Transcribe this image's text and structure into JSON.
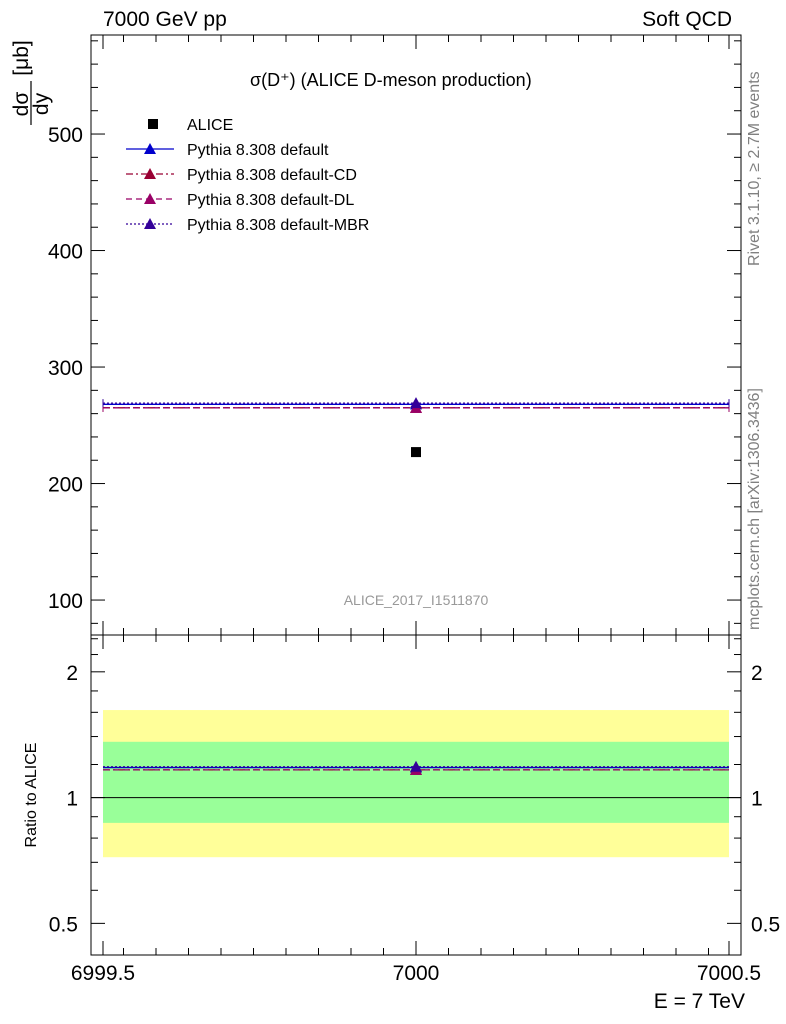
{
  "header": {
    "left": "7000 GeV pp",
    "right": "Soft QCD"
  },
  "side_labels": {
    "rivet": "Rivet 3.1.10, ≥ 2.7M events",
    "mcplots": "mcplots.cern.ch [arXiv:1306.3436]"
  },
  "watermark": "ALICE_2017_I1511870",
  "chart_data": [
    {
      "type": "scatter",
      "panel": "main",
      "title": "σ(D⁺) (ALICE D-meson production)",
      "ylabel": "dσ/dy [μb]",
      "ylabel_num": "dσ",
      "ylabel_den": "dy",
      "ylabel_unit": "[μb]",
      "xlim": [
        6999.5,
        7000.5
      ],
      "ylim": [
        70,
        585
      ],
      "yticks": [
        100,
        200,
        300,
        400,
        500
      ],
      "legend_position": "top-left",
      "series": [
        {
          "name": "ALICE",
          "style": "data",
          "marker": "square",
          "color": "#000000",
          "x": [
            7000
          ],
          "y": [
            227
          ]
        },
        {
          "name": "Pythia 8.308 default",
          "style": "solid",
          "marker": "triangle",
          "color": "#0000cc",
          "x": [
            7000
          ],
          "y": [
            268
          ]
        },
        {
          "name": "Pythia 8.308 default-CD",
          "style": "dashdot",
          "marker": "triangle",
          "color": "#990033",
          "x": [
            7000
          ],
          "y": [
            265
          ]
        },
        {
          "name": "Pythia 8.308 default-DL",
          "style": "dashed",
          "marker": "triangle",
          "color": "#990066",
          "x": [
            7000
          ],
          "y": [
            265
          ]
        },
        {
          "name": "Pythia 8.308 default-MBR",
          "style": "dotted",
          "marker": "triangle",
          "color": "#330099",
          "x": [
            7000
          ],
          "y": [
            269
          ]
        }
      ]
    },
    {
      "type": "scatter",
      "panel": "ratio",
      "ylabel": "Ratio to ALICE",
      "xlabel": "E = 7 TeV",
      "xlim": [
        6999.5,
        7000.5
      ],
      "xticks": [
        6999.5,
        7000,
        7000.5
      ],
      "xtick_labels": [
        "6999.5",
        "7000",
        "7000.5"
      ],
      "ylim": [
        0.42,
        2.45
      ],
      "scale": "log",
      "yticks": [
        0.5,
        1,
        2
      ],
      "ytick_labels": [
        "0.5",
        "1",
        "2"
      ],
      "bands": [
        {
          "range": [
            0.72,
            1.62
          ],
          "color": "#ffff99"
        },
        {
          "range": [
            0.87,
            1.36
          ],
          "color": "#99ff99"
        }
      ],
      "reference": 1,
      "series": [
        {
          "name": "Pythia 8.308 default",
          "x": [
            7000
          ],
          "y": [
            1.18
          ]
        },
        {
          "name": "Pythia 8.308 default-CD",
          "x": [
            7000
          ],
          "y": [
            1.165
          ]
        },
        {
          "name": "Pythia 8.308 default-DL",
          "x": [
            7000
          ],
          "y": [
            1.165
          ]
        },
        {
          "name": "Pythia 8.308 default-MBR",
          "x": [
            7000
          ],
          "y": [
            1.185
          ]
        }
      ]
    }
  ]
}
